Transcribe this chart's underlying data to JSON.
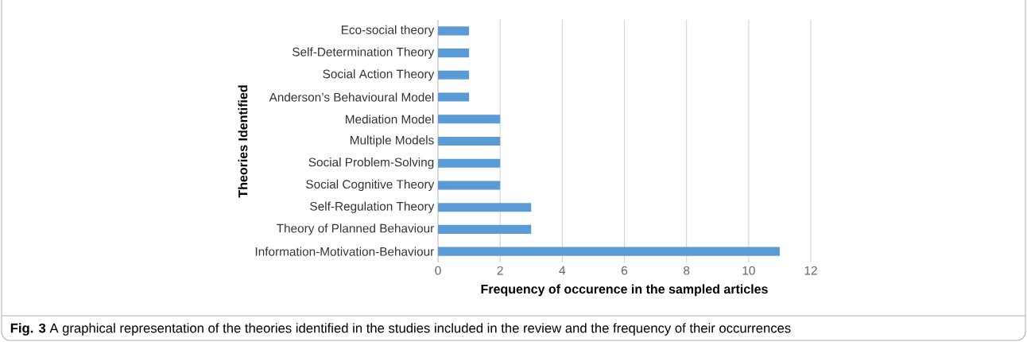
{
  "chart_data": {
    "type": "bar",
    "orientation": "horizontal",
    "categories": [
      "Eco-social theory",
      "Self-Determination Theory",
      "Social Action Theory",
      "Anderson’s Behavioural Model",
      "Mediation Model",
      "Multiple Models",
      "Social Problem-Solving",
      "Social Cognitive Theory",
      "Self-Regulation Theory",
      "Theory of Planned Behaviour",
      "Information-Motivation-Behaviour"
    ],
    "values": [
      1,
      1,
      1,
      1,
      2,
      2,
      2,
      2,
      3,
      3,
      11
    ],
    "color": "#5b9bd5",
    "xlim": [
      0,
      12
    ],
    "xticks": [
      0,
      2,
      4,
      6,
      8,
      10,
      12
    ],
    "grid": "x",
    "xlabel": "Frequency of occurence in the sampled articles",
    "ylabel": "Theories Identified",
    "annotations": [
      "**Fig. 3** A graphical representation of the theories identified in the studies included in the review and the frequency of their occurrences"
    ]
  }
}
